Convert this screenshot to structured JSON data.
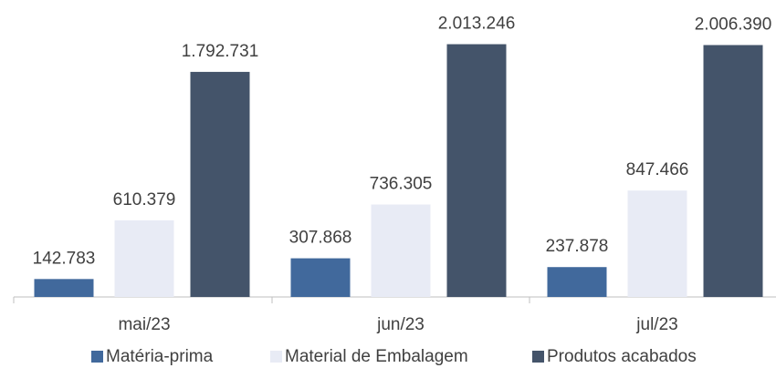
{
  "chart_data": {
    "type": "bar",
    "categories": [
      "mai/23",
      "jun/23",
      "jul/23"
    ],
    "series": [
      {
        "name": "Matéria-prima",
        "color": "#41699c",
        "values": [
          142783,
          307868,
          237878
        ],
        "value_labels": [
          "142.783",
          "307.868",
          "237.878"
        ]
      },
      {
        "name": "Material de Embalagem",
        "color": "#e8ebf5",
        "values": [
          610379,
          736305,
          847466
        ],
        "value_labels": [
          "610.379",
          "736.305",
          "847.466"
        ]
      },
      {
        "name": "Produtos acabados",
        "color": "#44546a",
        "values": [
          1792731,
          2013246,
          2006390
        ],
        "value_labels": [
          "1.792.731",
          "2.013.246",
          "2.006.390"
        ]
      }
    ],
    "ylim": [
      0,
      2300000
    ],
    "legend": "bottom"
  }
}
